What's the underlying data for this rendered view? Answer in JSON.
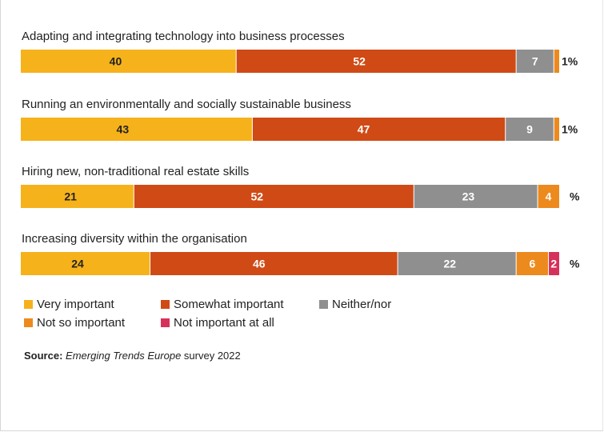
{
  "chart_data": {
    "type": "bar",
    "orientation": "horizontal",
    "stacked": true,
    "unit_label": "%",
    "categories": [
      "Adapting and integrating technology into business processes",
      "Running an environmentally and socially sustainable business",
      "Hiring new, non-traditional real estate skills",
      "Increasing diversity within the organisation"
    ],
    "series": [
      {
        "name": "Very important",
        "color": "#f6b21b",
        "label_color": "#222222",
        "values": [
          40,
          43,
          21,
          24
        ]
      },
      {
        "name": "Somewhat important",
        "color": "#d04a15",
        "label_color": "#ffffff",
        "values": [
          52,
          47,
          52,
          46
        ]
      },
      {
        "name": "Neither/nor",
        "color": "#8f8f90",
        "label_color": "#ffffff",
        "values": [
          7,
          9,
          23,
          22
        ]
      },
      {
        "name": "Not so important",
        "color": "#ec8a1e",
        "label_color": "#ffffff",
        "values": [
          1,
          1,
          4,
          6
        ]
      },
      {
        "name": "Not important at all",
        "color": "#d6315a",
        "label_color": "#ffffff",
        "values": [
          0,
          0,
          0,
          2
        ]
      }
    ],
    "outside_labels": [
      "1",
      "1",
      "",
      ""
    ],
    "xlim": [
      0,
      100
    ],
    "grid": false,
    "legend_position": "bottom"
  },
  "source": {
    "prefix": "Source:",
    "italic": "Emerging Trends Europe",
    "suffix": " survey 2022"
  }
}
